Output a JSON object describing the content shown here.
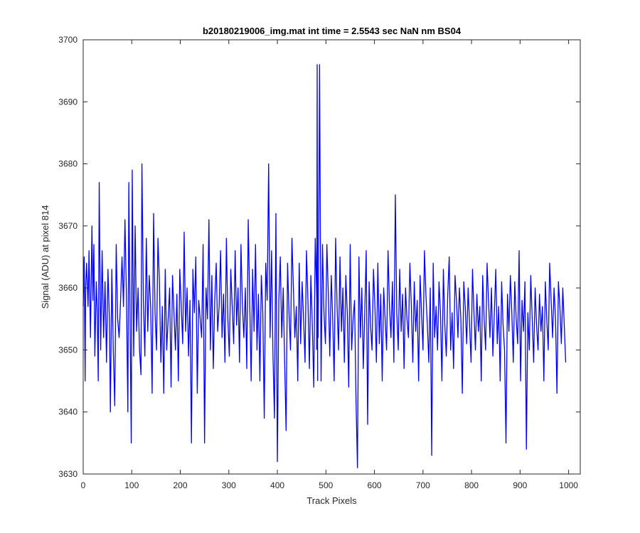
{
  "chart_data": {
    "type": "line",
    "title": "b20180219006_img.mat int time = 2.5543 sec  NaN nm BS04",
    "xlabel": "Track Pixels",
    "ylabel": "Signal (ADU) at pixel 814",
    "xlim": [
      0,
      1024
    ],
    "ylim": [
      3630,
      3700
    ],
    "xticks": [
      0,
      100,
      200,
      300,
      400,
      500,
      600,
      700,
      800,
      900,
      1000
    ],
    "yticks": [
      3630,
      3640,
      3650,
      3660,
      3670,
      3680,
      3690,
      3700
    ],
    "grid": false,
    "line_color": "#0000ff",
    "series": [
      {
        "points_x": [
          0,
          2,
          4,
          5,
          7,
          10,
          12,
          15,
          18,
          20,
          22,
          24,
          27,
          29,
          31,
          33,
          36,
          39,
          42,
          45,
          48,
          51,
          54,
          56,
          59,
          62,
          65,
          68,
          71,
          74,
          77,
          80,
          83,
          86,
          89,
          92,
          94,
          97,
          99,
          101,
          104,
          107,
          110,
          113,
          116,
          119,
          121,
          124,
          127,
          130,
          133,
          136,
          139,
          142,
          145,
          148,
          151,
          154,
          157,
          160,
          163,
          166,
          169,
          172,
          175,
          178,
          181,
          184,
          187,
          190,
          193,
          196,
          199,
          202,
          205,
          208,
          211,
          214,
          217,
          220,
          223,
          226,
          229,
          232,
          235,
          238,
          241,
          244,
          247,
          250,
          253,
          256,
          259,
          262,
          265,
          268,
          271,
          274,
          277,
          280,
          283,
          286,
          289,
          292,
          295,
          298,
          301,
          304,
          307,
          310,
          313,
          316,
          319,
          322,
          325,
          328,
          331,
          334,
          337,
          340,
          343,
          346,
          349,
          352,
          355,
          358,
          361,
          364,
          367,
          370,
          373,
          376,
          379,
          382,
          385,
          388,
          391,
          394,
          397,
          400,
          403,
          406,
          409,
          412,
          415,
          418,
          421,
          424,
          427,
          430,
          433,
          436,
          439,
          442,
          445,
          448,
          451,
          454,
          457,
          460,
          463,
          466,
          469,
          472,
          475,
          478,
          481,
          484,
          487,
          490,
          493,
          496,
          499,
          502,
          505,
          508,
          511,
          514,
          517,
          520,
          523,
          526,
          529,
          532,
          535,
          538,
          541,
          544,
          547,
          550,
          553,
          556,
          559,
          562,
          565,
          568,
          571,
          574,
          577,
          580,
          583,
          586,
          589,
          592,
          595,
          598,
          601,
          604,
          607,
          610,
          613,
          616,
          619,
          622,
          625,
          628,
          631,
          634,
          637,
          640,
          643,
          646,
          649,
          652,
          655,
          658,
          661,
          664,
          667,
          670,
          673,
          676,
          679,
          682,
          685,
          688,
          691,
          694,
          697,
          700,
          703,
          706,
          709,
          712,
          715,
          718,
          721,
          724,
          727,
          730,
          733,
          736,
          739,
          742,
          745,
          748,
          751,
          754,
          757,
          760,
          763,
          766,
          769,
          772,
          775,
          778,
          781,
          784,
          787,
          790,
          793,
          796,
          799,
          802,
          805,
          808,
          811,
          814,
          817,
          820,
          823,
          826,
          829,
          832,
          835,
          838,
          841,
          844,
          847,
          850,
          853,
          856,
          859,
          862,
          865,
          868,
          871,
          874,
          877,
          880,
          883,
          886,
          889,
          892,
          895,
          898,
          901,
          904,
          907,
          910,
          913,
          916,
          919,
          922,
          925,
          928,
          931,
          934,
          937,
          940,
          943,
          946,
          949,
          952,
          955,
          958,
          961,
          964,
          967,
          970,
          973,
          976,
          979,
          982,
          985,
          988,
          991,
          994,
          997,
          1000,
          1003,
          1006,
          1009,
          1012,
          1015,
          1018,
          1021,
          1024
        ],
        "points_y": [
          3657,
          3665,
          3645,
          3660,
          3664,
          3657,
          3666,
          3652,
          3670,
          3658,
          3667,
          3649,
          3661,
          3656,
          3645,
          3677,
          3650,
          3666,
          3652,
          3661,
          3648,
          3663,
          3655,
          3640,
          3663,
          3650,
          3641,
          3667,
          3655,
          3652,
          3658,
          3665,
          3657,
          3671,
          3659,
          3640,
          3677,
          3651,
          3635,
          3679,
          3649,
          3670,
          3653,
          3660,
          3650,
          3646,
          3680,
          3658,
          3649,
          3668,
          3653,
          3662,
          3657,
          3643,
          3672,
          3656,
          3650,
          3668,
          3661,
          3648,
          3657,
          3643,
          3663,
          3650,
          3655,
          3660,
          3644,
          3662,
          3656,
          3650,
          3659,
          3645,
          3663,
          3657,
          3651,
          3669,
          3653,
          3660,
          3649,
          3658,
          3635,
          3663,
          3656,
          3665,
          3643,
          3658,
          3655,
          3652,
          3667,
          3635,
          3660,
          3655,
          3671,
          3650,
          3662,
          3647,
          3658,
          3664,
          3653,
          3657,
          3666,
          3652,
          3659,
          3648,
          3668,
          3655,
          3649,
          3663,
          3657,
          3651,
          3666,
          3654,
          3660,
          3648,
          3667,
          3657,
          3652,
          3660,
          3647,
          3671,
          3658,
          3645,
          3663,
          3653,
          3667,
          3650,
          3659,
          3645,
          3662,
          3656,
          3639,
          3664,
          3658,
          3680,
          3652,
          3666,
          3649,
          3639,
          3672,
          3632,
          3658,
          3665,
          3652,
          3660,
          3648,
          3637,
          3664,
          3656,
          3650,
          3668,
          3660,
          3652,
          3657,
          3645,
          3664,
          3651,
          3661,
          3655,
          3648,
          3666,
          3658,
          3647,
          3662,
          3654,
          3644,
          3668,
          3659,
          3652,
          3696,
          3645,
          3667,
          3656,
          3651,
          3667,
          3659,
          3649,
          3662,
          3655,
          3645,
          3668,
          3657,
          3650,
          3665,
          3653,
          3660,
          3648,
          3662,
          3656,
          3644,
          3667,
          3650,
          3655,
          3658,
          3642,
          3631,
          3665,
          3652,
          3660,
          3647,
          3656,
          3666,
          3638,
          3661,
          3654,
          3650,
          3663,
          3657,
          3648,
          3664,
          3651,
          3659,
          3645,
          3660,
          3655,
          3650,
          3666,
          3657,
          3652,
          3661,
          3648,
          3675,
          3656,
          3650,
          3663,
          3653,
          3659,
          3647,
          3660,
          3655,
          3652,
          3664,
          3657,
          3648,
          3661,
          3653,
          3658,
          3645,
          3662,
          3656,
          3650,
          3666,
          3659,
          3654,
          3648,
          3660,
          3633,
          3664,
          3652,
          3657,
          3650,
          3661,
          3656,
          3645,
          3663,
          3654,
          3649,
          3659,
          3665,
          3650,
          3656,
          3647,
          3662,
          3658,
          3652,
          3660,
          3655,
          3643,
          3661,
          3657,
          3651,
          3660,
          3654,
          3648,
          3663,
          3656,
          3650,
          3659,
          3653,
          3657,
          3645,
          3662,
          3655,
          3650,
          3664,
          3658,
          3652,
          3660,
          3649,
          3656,
          3663,
          3651,
          3657,
          3645,
          3661,
          3654,
          3650,
          3635,
          3659,
          3653,
          3662,
          3656,
          3648,
          3661,
          3655,
          3651,
          3666,
          3645,
          3658,
          3653,
          3661,
          3634,
          3656,
          3650,
          3662,
          3655,
          3648,
          3660,
          3654,
          3650,
          3659,
          3653,
          3657,
          3645,
          3661,
          3655,
          3650,
          3664,
          3658,
          3652,
          3660,
          3655,
          3643,
          3661,
          3657,
          3651,
          3660,
          3654,
          3648
        ]
      },
      {
        "points_x": [
          481,
          482,
          483
        ],
        "points_y": [
          3650,
          3696,
          3645
        ]
      }
    ]
  }
}
